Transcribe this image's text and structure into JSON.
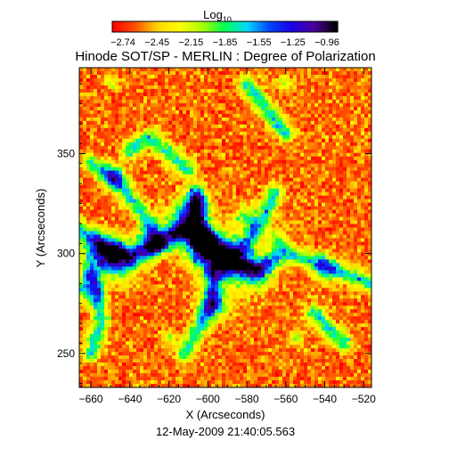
{
  "chart_data": {
    "type": "heatmap",
    "title": "Hinode SOT/SP - MERLIN : Degree of Polarization",
    "colorbar": {
      "label_base": "Log",
      "label_subscript": "10",
      "tick_labels": [
        "−2.74",
        "−2.45",
        "−2.15",
        "−1.85",
        "−1.55",
        "−1.25",
        "−0.96"
      ],
      "range": [
        -2.74,
        -0.96
      ],
      "colormap": [
        "#ff0000",
        "#ff5500",
        "#ffd700",
        "#ffff00",
        "#a8ff00",
        "#00ff55",
        "#00d8ff",
        "#0044ff",
        "#1a00e6",
        "#4a009a",
        "#000000"
      ]
    },
    "xlabel": "X (Arcseconds)",
    "ylabel": "Y (Arcseconds)",
    "xlim": [
      -666,
      -516
    ],
    "ylim": [
      233,
      393
    ],
    "xticks": [
      -660,
      -640,
      -620,
      -600,
      -580,
      -560,
      -540,
      -520
    ],
    "yticks": [
      250,
      300,
      350
    ],
    "xtick_labels": [
      "−660",
      "−640",
      "−620",
      "−600",
      "−580",
      "−560",
      "−540",
      "−520"
    ],
    "ytick_labels": [
      "250",
      "300",
      "350"
    ],
    "grid": false,
    "timestamp": "12-May-2009 21:40:05.563"
  }
}
